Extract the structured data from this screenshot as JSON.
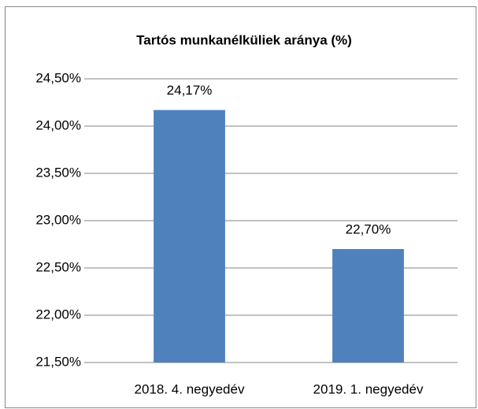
{
  "chart_data": {
    "type": "bar",
    "title": "Tartós munkanélküliek aránya (%)",
    "categories": [
      "2018. 4. negyedév",
      "2019. 1. negyedév"
    ],
    "values": [
      24.17,
      22.7
    ],
    "value_labels": [
      "24,17%",
      "22,70%"
    ],
    "color": "#4f81bd",
    "ylim": [
      21.5,
      24.5
    ],
    "yticks": [
      {
        "value": 21.5,
        "label": "21,50%"
      },
      {
        "value": 22,
        "label": "22,00%"
      },
      {
        "value": 22.5,
        "label": "22,50%"
      },
      {
        "value": 23,
        "label": "23,00%"
      },
      {
        "value": 23.5,
        "label": "23,50%"
      },
      {
        "value": 24,
        "label": "24,00%"
      },
      {
        "value": 24.5,
        "label": "24,50%"
      }
    ],
    "grid": true
  }
}
